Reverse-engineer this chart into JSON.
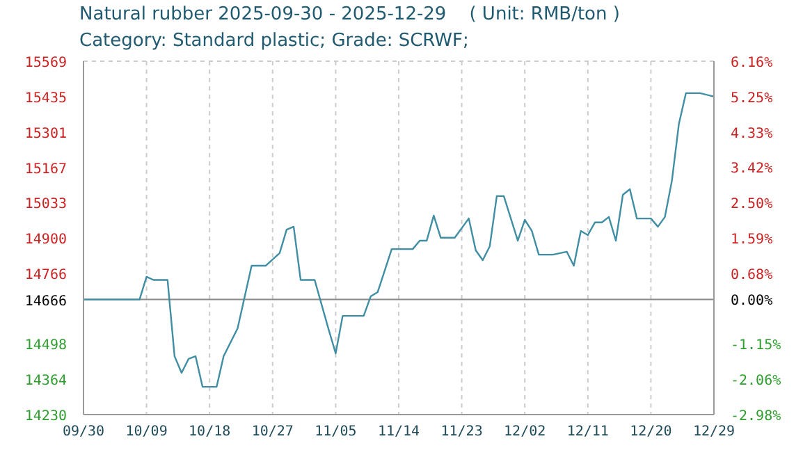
{
  "chart_data": {
    "type": "line",
    "title": "Natural rubber 2025-09-30 - 2025-12-29    ( Unit: RMB/ton )",
    "subtitle": "Category: Standard plastic; Grade: SCRWF;",
    "x": [
      "2025-09-30",
      "2025-10-08",
      "2025-10-09",
      "2025-10-10",
      "2025-10-12",
      "2025-10-13",
      "2025-10-14",
      "2025-10-15",
      "2025-10-16",
      "2025-10-17",
      "2025-10-19",
      "2025-10-20",
      "2025-10-22",
      "2025-10-24",
      "2025-10-26",
      "2025-10-28",
      "2025-10-29",
      "2025-10-30",
      "2025-10-31",
      "2025-11-02",
      "2025-11-04",
      "2025-11-05",
      "2025-11-06",
      "2025-11-09",
      "2025-11-10",
      "2025-11-11",
      "2025-11-13",
      "2025-11-16",
      "2025-11-17",
      "2025-11-18",
      "2025-11-19",
      "2025-11-20",
      "2025-11-22",
      "2025-11-24",
      "2025-11-25",
      "2025-11-26",
      "2025-11-27",
      "2025-11-28",
      "2025-11-29",
      "2025-12-01",
      "2025-12-02",
      "2025-12-03",
      "2025-12-04",
      "2025-12-06",
      "2025-12-08",
      "2025-12-09",
      "2025-12-10",
      "2025-12-11",
      "2025-12-12",
      "2025-12-13",
      "2025-12-14",
      "2025-12-15",
      "2025-12-16",
      "2025-12-17",
      "2025-12-18",
      "2025-12-20",
      "2025-12-21",
      "2025-12-22",
      "2025-12-23",
      "2025-12-24",
      "2025-12-25",
      "2025-12-27",
      "2025-12-29"
    ],
    "series": [
      {
        "color": "#3f8ea3",
        "values": [
          14666,
          14666,
          14752,
          14740,
          14740,
          14451,
          14388,
          14441,
          14451,
          14335,
          14335,
          14451,
          14557,
          14794,
          14794,
          14842,
          14931,
          14942,
          14740,
          14740,
          14552,
          14462,
          14604,
          14604,
          14678,
          14694,
          14857,
          14857,
          14889,
          14889,
          14984,
          14900,
          14900,
          14973,
          14852,
          14815,
          14868,
          15058,
          15058,
          14889,
          14968,
          14926,
          14836,
          14836,
          14847,
          14794,
          14926,
          14910,
          14958,
          14958,
          14979,
          14889,
          15063,
          15084,
          14973,
          14973,
          14942,
          14979,
          15116,
          15332,
          15448,
          15448,
          15435
        ]
      }
    ],
    "xlim": [
      "2025-09-30",
      "2025-12-29"
    ],
    "xticks": [
      {
        "value": "2025-09-30",
        "label": "09/30"
      },
      {
        "value": "2025-10-09",
        "label": "10/09"
      },
      {
        "value": "2025-10-18",
        "label": "10/18"
      },
      {
        "value": "2025-10-27",
        "label": "10/27"
      },
      {
        "value": "2025-11-05",
        "label": "11/05"
      },
      {
        "value": "2025-11-14",
        "label": "11/14"
      },
      {
        "value": "2025-11-23",
        "label": "11/23"
      },
      {
        "value": "2025-12-02",
        "label": "12/02"
      },
      {
        "value": "2025-12-11",
        "label": "12/11"
      },
      {
        "value": "2025-12-20",
        "label": "12/20"
      },
      {
        "value": "2025-12-29",
        "label": "12/29"
      }
    ],
    "ylim": [
      14230,
      15569
    ],
    "yticks": [
      14230,
      14364,
      14498,
      14666,
      14766,
      14900,
      15033,
      15167,
      15301,
      15435,
      15569
    ],
    "y2lim": [
      -2.98,
      6.16
    ],
    "y2ticks": [
      {
        "value": -2.98,
        "label": "-2.98%"
      },
      {
        "value": -2.06,
        "label": "-2.06%"
      },
      {
        "value": -1.15,
        "label": "-1.15%"
      },
      {
        "value": 0,
        "label": "0.00%"
      },
      {
        "value": 0.68,
        "label": "0.68%"
      },
      {
        "value": 1.59,
        "label": "1.59%"
      },
      {
        "value": 2.5,
        "label": "2.50%"
      },
      {
        "value": 3.42,
        "label": "3.42%"
      },
      {
        "value": 4.33,
        "label": "4.33%"
      },
      {
        "value": 5.25,
        "label": "5.25%"
      },
      {
        "value": 6.16,
        "label": "6.16%"
      }
    ],
    "ref_lines": [
      {
        "axis": "y",
        "value": 14666,
        "color": "#888888"
      }
    ],
    "grid": true,
    "legend": false,
    "marker": "none",
    "line_style": "solid"
  }
}
